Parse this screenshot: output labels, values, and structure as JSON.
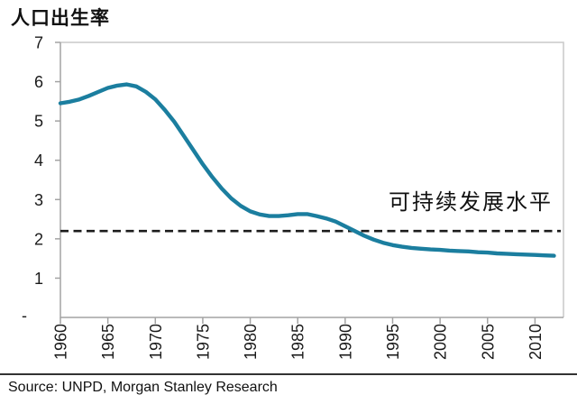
{
  "page": {
    "title": "人口出生率"
  },
  "footer": {
    "source": "Source: UNPD, Morgan Stanley Research"
  },
  "chart_data": {
    "type": "line",
    "title": "人口出生率",
    "xlabel": "",
    "ylabel": "",
    "xlim": [
      1960,
      2013
    ],
    "ylim": [
      0,
      7
    ],
    "x_ticks": [
      1960,
      1965,
      1970,
      1975,
      1980,
      1985,
      1990,
      1995,
      2000,
      2005,
      2010
    ],
    "y_ticks": [
      1,
      2,
      3,
      4,
      5,
      6,
      7
    ],
    "y_zero_label": "-",
    "grid": false,
    "legend": "none",
    "colors": {
      "line": "#1b7e9f",
      "axis": "#a3a3a3",
      "frame": "#c9c9c9",
      "text": "#1a1a1a"
    },
    "threshold": {
      "value": 2.2,
      "label": "可持续发展水平",
      "style": "dashed",
      "color": "#1c1c1c"
    },
    "series": [
      {
        "name": "人口出生率",
        "key": "birth-rate",
        "color": "#1b7e9f",
        "x": [
          1960,
          1961,
          1962,
          1963,
          1964,
          1965,
          1966,
          1967,
          1968,
          1969,
          1970,
          1971,
          1972,
          1973,
          1974,
          1975,
          1976,
          1977,
          1978,
          1979,
          1980,
          1981,
          1982,
          1983,
          1984,
          1985,
          1986,
          1987,
          1988,
          1989,
          1990,
          1991,
          1992,
          1993,
          1994,
          1995,
          1996,
          1997,
          1998,
          1999,
          2000,
          2001,
          2002,
          2003,
          2004,
          2005,
          2006,
          2007,
          2008,
          2009,
          2010,
          2011,
          2012
        ],
        "y": [
          5.45,
          5.49,
          5.55,
          5.64,
          5.74,
          5.84,
          5.9,
          5.93,
          5.88,
          5.74,
          5.55,
          5.28,
          4.98,
          4.62,
          4.26,
          3.9,
          3.57,
          3.28,
          3.03,
          2.84,
          2.7,
          2.62,
          2.58,
          2.58,
          2.6,
          2.63,
          2.63,
          2.58,
          2.52,
          2.44,
          2.32,
          2.2,
          2.08,
          1.98,
          1.9,
          1.84,
          1.8,
          1.77,
          1.75,
          1.73,
          1.72,
          1.7,
          1.69,
          1.68,
          1.66,
          1.65,
          1.63,
          1.62,
          1.61,
          1.6,
          1.59,
          1.58,
          1.57
        ]
      }
    ]
  }
}
